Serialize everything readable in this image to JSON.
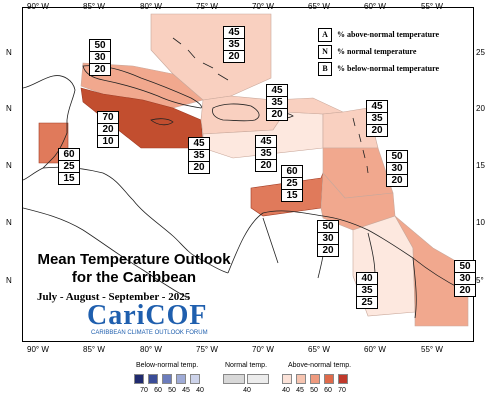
{
  "map": {
    "title_line1": "Mean Temperature Outlook",
    "title_line2": "for the Caribbean",
    "period": "July - August - September - 2025",
    "logo": {
      "name": "CariCOF",
      "subtitle": "CARIBBEAN CLIMATE OUTLOOK FORUM"
    },
    "lon_labels": [
      "90° W",
      "85° W",
      "80° W",
      "75° W",
      "70° W",
      "65° W",
      "60° W",
      "55° W"
    ],
    "lat_labels_left": [
      "N",
      "N",
      "N",
      "N",
      "N"
    ],
    "lat_labels_right": [
      "25",
      "20",
      "15",
      "10",
      "5°"
    ],
    "legend": [
      {
        "key": "A",
        "text": "% above-normal temperature"
      },
      {
        "key": "N",
        "text": "% normal temperature"
      },
      {
        "key": "B",
        "text": "% below-normal temperature"
      }
    ],
    "regions": [
      {
        "id": "bahamas",
        "above": "45",
        "normal": "35",
        "below": "20"
      },
      {
        "id": "cuba-west",
        "above": "50",
        "normal": "30",
        "below": "20"
      },
      {
        "id": "belize",
        "above": "60",
        "normal": "25",
        "below": "15"
      },
      {
        "id": "cayman-jamaica",
        "above": "70",
        "normal": "20",
        "below": "10"
      },
      {
        "id": "hispaniola",
        "above": "45",
        "normal": "35",
        "below": "20"
      },
      {
        "id": "caribbean-central",
        "above": "45",
        "normal": "35",
        "below": "20"
      },
      {
        "id": "puerto-rico",
        "above": "45",
        "normal": "35",
        "below": "20"
      },
      {
        "id": "leeward",
        "above": "45",
        "normal": "35",
        "below": "20"
      },
      {
        "id": "windward",
        "above": "50",
        "normal": "30",
        "below": "20"
      },
      {
        "id": "abc-islands",
        "above": "60",
        "normal": "25",
        "below": "15"
      },
      {
        "id": "trinidad",
        "above": "50",
        "normal": "30",
        "below": "20"
      },
      {
        "id": "guyana",
        "above": "40",
        "normal": "35",
        "below": "25"
      },
      {
        "id": "suriname-french-guiana",
        "above": "50",
        "normal": "30",
        "below": "20"
      }
    ],
    "colorbar": {
      "below_title": "Below-normal temp.",
      "normal_title": "Normal temp.",
      "above_title": "Above-normal temp.",
      "below_ticks": [
        "70",
        "60",
        "50",
        "45",
        "40"
      ],
      "normal_ticks": [
        "40"
      ],
      "above_ticks": [
        "40",
        "45",
        "50",
        "60",
        "70"
      ],
      "below_colors": [
        "#1f2a6e",
        "#3a4c97",
        "#6b7cbc",
        "#9fabd6",
        "#cdd3ea"
      ],
      "normal_colors": [
        "#d8d8d8",
        "#ececec"
      ],
      "above_colors": [
        "#fbe2d8",
        "#f6c4b0",
        "#ee9a7e",
        "#df6a4a",
        "#c0392b"
      ]
    },
    "colors": {
      "above_40": "#fde8df",
      "above_45": "#f9d0c0",
      "above_50": "#f1a88e",
      "above_60": "#e07a5b",
      "above_70": "#c24e2f",
      "land_outline": "#222222",
      "logo_blue": "#1f5fae"
    }
  }
}
